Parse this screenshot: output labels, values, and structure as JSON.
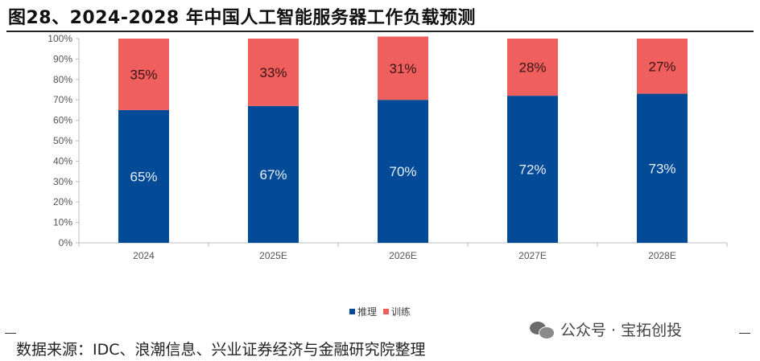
{
  "header": {
    "title": "图28、2024-2028 年中国人工智能服务器工作负载预测"
  },
  "footer": {
    "source": "数据来源：IDC、浪潮信息、兴业证券经济与金融研究院整理",
    "watermark": "公众号 · 宝拓创投"
  },
  "chart_data": {
    "type": "bar",
    "stacked": true,
    "categories": [
      "2024",
      "2025E",
      "2026E",
      "2027E",
      "2028E"
    ],
    "series": [
      {
        "name": "推理",
        "values": [
          65,
          67,
          70,
          72,
          73
        ],
        "color": "#034B96"
      },
      {
        "name": "训练",
        "values": [
          35,
          33,
          31,
          28,
          27
        ],
        "color": "#EF5F5D"
      }
    ],
    "data_labels": [
      [
        "65%",
        "67%",
        "70%",
        "72%",
        "73%"
      ],
      [
        "35%",
        "33%",
        "31%",
        "28%",
        "27%"
      ]
    ],
    "ylim": [
      0,
      100
    ],
    "yticks": [
      "0%",
      "10%",
      "20%",
      "30%",
      "40%",
      "50%",
      "60%",
      "70%",
      "80%",
      "90%",
      "100%"
    ],
    "grid": false,
    "legend": "bottom-center"
  }
}
